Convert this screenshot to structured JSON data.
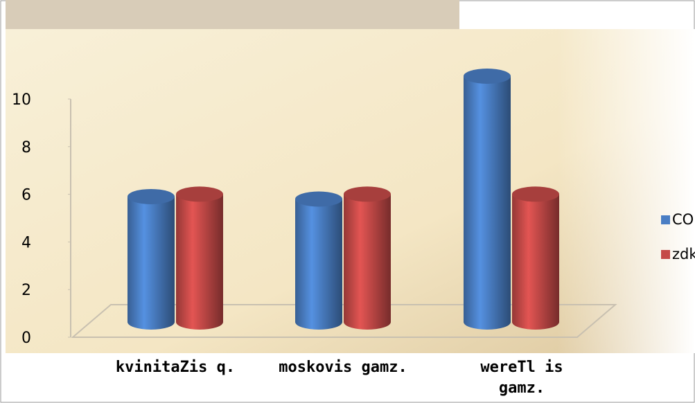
{
  "chart_data": {
    "type": "bar3d",
    "categories": [
      "kvinitaZis q.",
      "moskovis gamz.",
      "wereTl is gamz."
    ],
    "series": [
      {
        "name": "CO",
        "color": "#4a7ec4",
        "values": [
          5.1,
          5,
          10
        ]
      },
      {
        "name": "zdk",
        "color": "#c54a48",
        "values": [
          5.2,
          5.2,
          5.2
        ]
      }
    ],
    "ylim": [
      0,
      10
    ],
    "yticks": [
      0,
      2,
      4,
      6,
      8,
      10
    ],
    "legend": "right"
  }
}
